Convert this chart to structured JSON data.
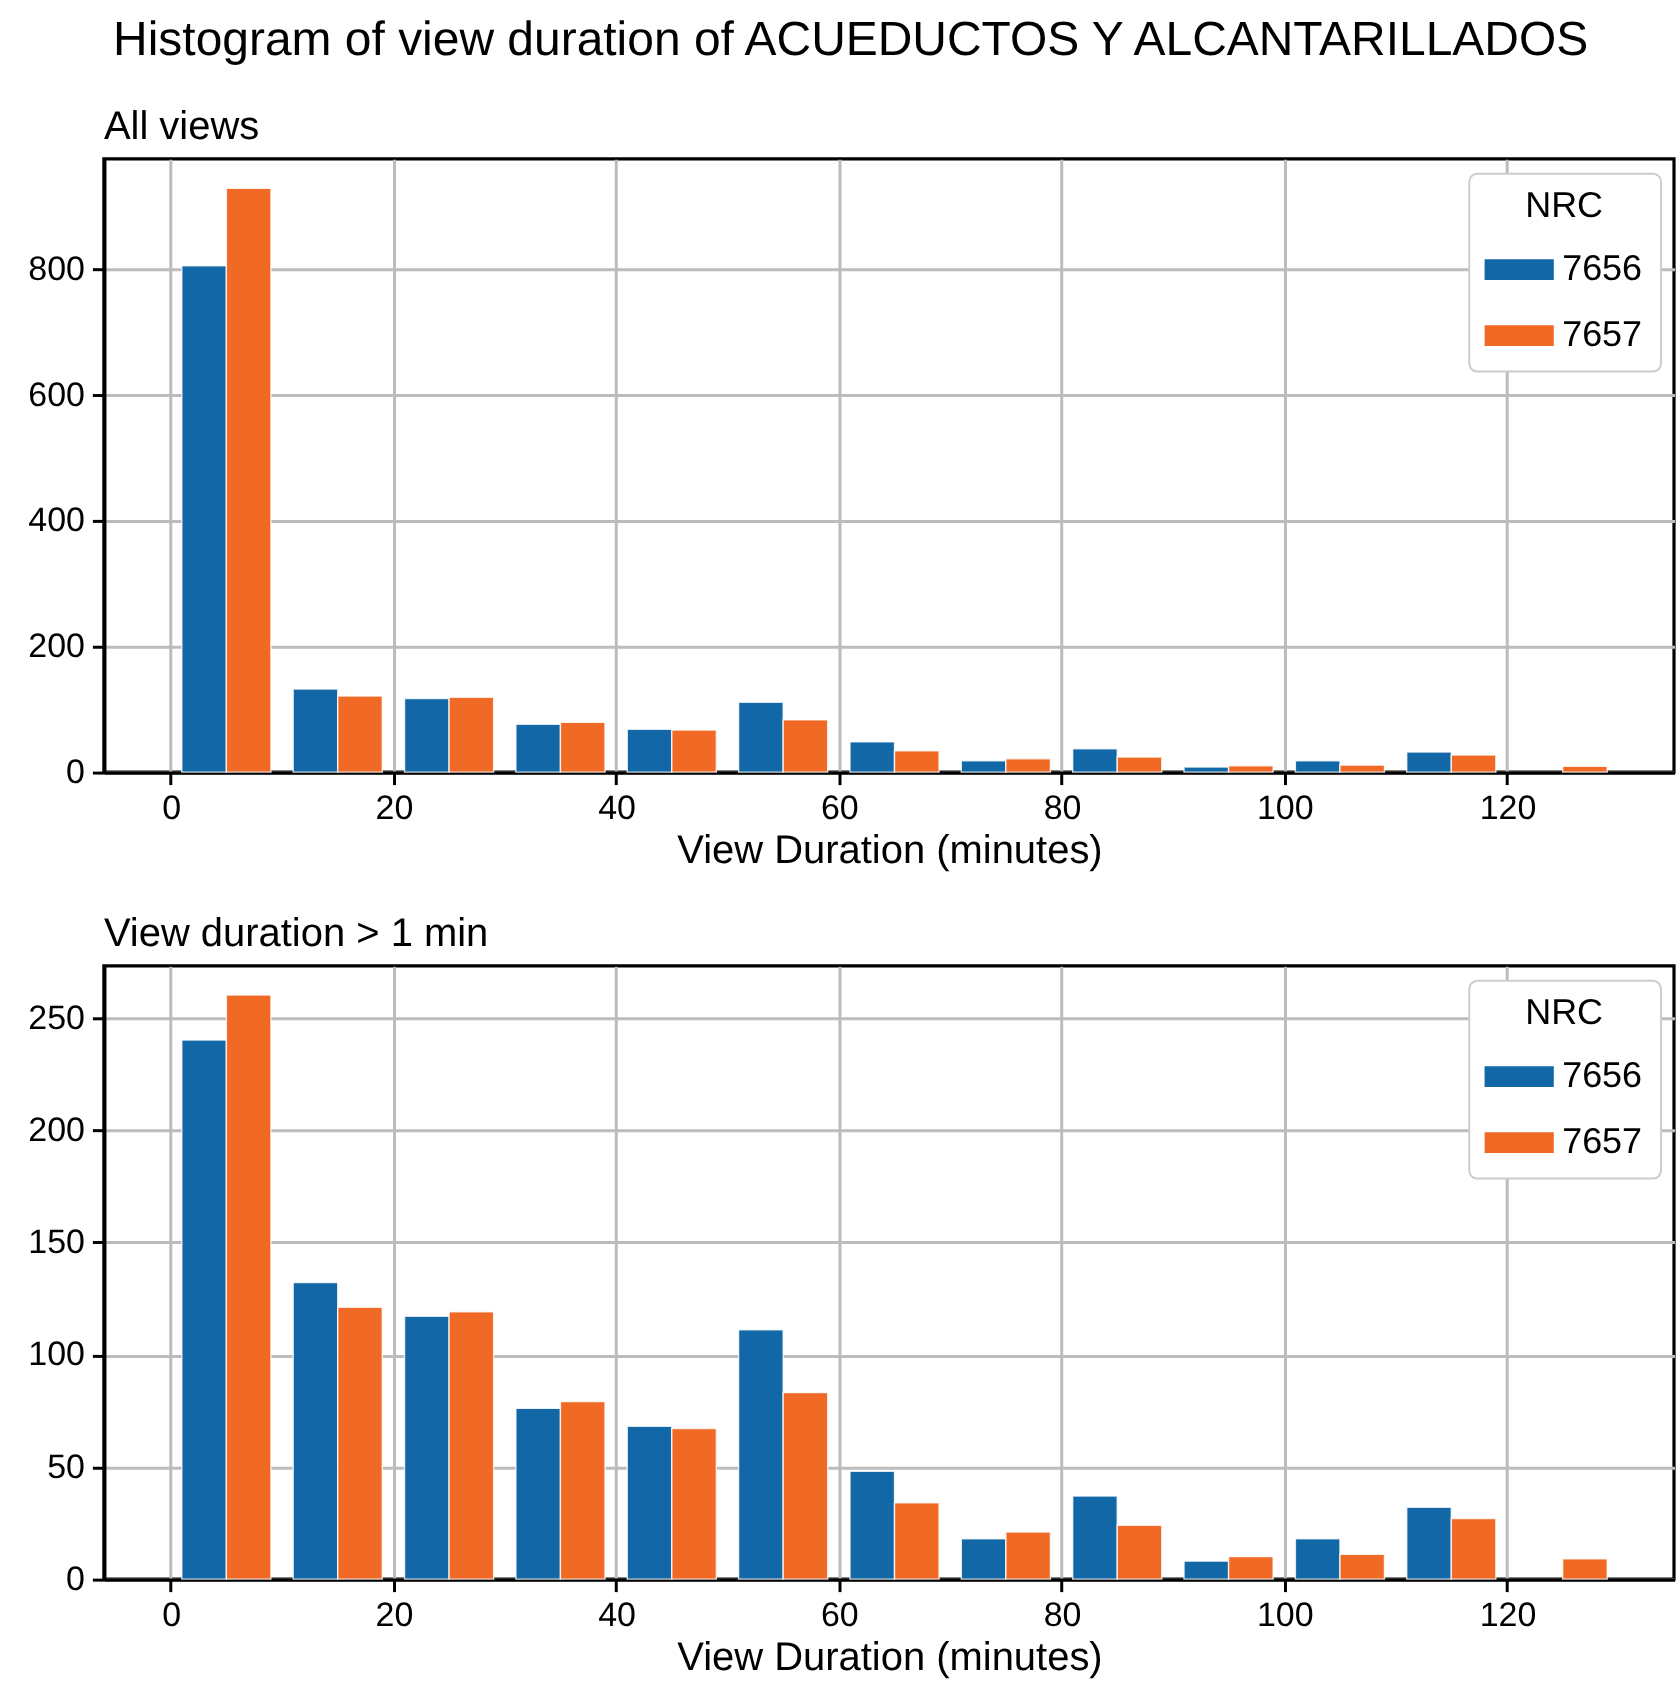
{
  "chart_data": [
    {
      "type": "histogram",
      "title": "Histogram of view duration of ACUEDUCTOS Y ALCANTARILLADOS",
      "subtitle": "All views",
      "xlabel": "View Duration (minutes)",
      "legend_title": "NRC",
      "legend": "top right",
      "grid": true,
      "bins": [
        0,
        10,
        20,
        30,
        40,
        50,
        60,
        70,
        80,
        90,
        100,
        110,
        120,
        130
      ],
      "series": [
        {
          "name": "7656",
          "color": "#1267a6",
          "values": [
            805,
            132,
            117,
            76,
            68,
            111,
            48,
            18,
            37,
            8,
            18,
            32,
            0
          ]
        },
        {
          "name": "7657",
          "color": "#f16a25",
          "values": [
            928,
            121,
            119,
            79,
            67,
            83,
            34,
            21,
            24,
            10,
            11,
            27,
            9
          ]
        }
      ],
      "xlim": [
        -6,
        135
      ],
      "xticks": [
        0,
        20,
        40,
        60,
        80,
        100,
        120
      ],
      "ylim": [
        0,
        975
      ],
      "yticks": [
        0,
        200,
        400,
        600,
        800
      ]
    },
    {
      "type": "histogram",
      "subtitle": "View duration > 1 min",
      "xlabel": "View Duration (minutes)",
      "legend_title": "NRC",
      "legend": "top right",
      "grid": true,
      "bins": [
        0,
        10,
        20,
        30,
        40,
        50,
        60,
        70,
        80,
        90,
        100,
        110,
        120,
        130
      ],
      "series": [
        {
          "name": "7656",
          "color": "#1267a6",
          "values": [
            240,
            132,
            117,
            76,
            68,
            111,
            48,
            18,
            37,
            8,
            18,
            32,
            0
          ]
        },
        {
          "name": "7657",
          "color": "#f16a25",
          "values": [
            260,
            121,
            119,
            79,
            67,
            83,
            34,
            21,
            24,
            10,
            11,
            27,
            9
          ]
        }
      ],
      "xlim": [
        -6,
        135
      ],
      "xticks": [
        0,
        20,
        40,
        60,
        80,
        100,
        120
      ],
      "ylim": [
        0,
        273
      ],
      "yticks": [
        0,
        50,
        100,
        150,
        200,
        250
      ]
    }
  ]
}
